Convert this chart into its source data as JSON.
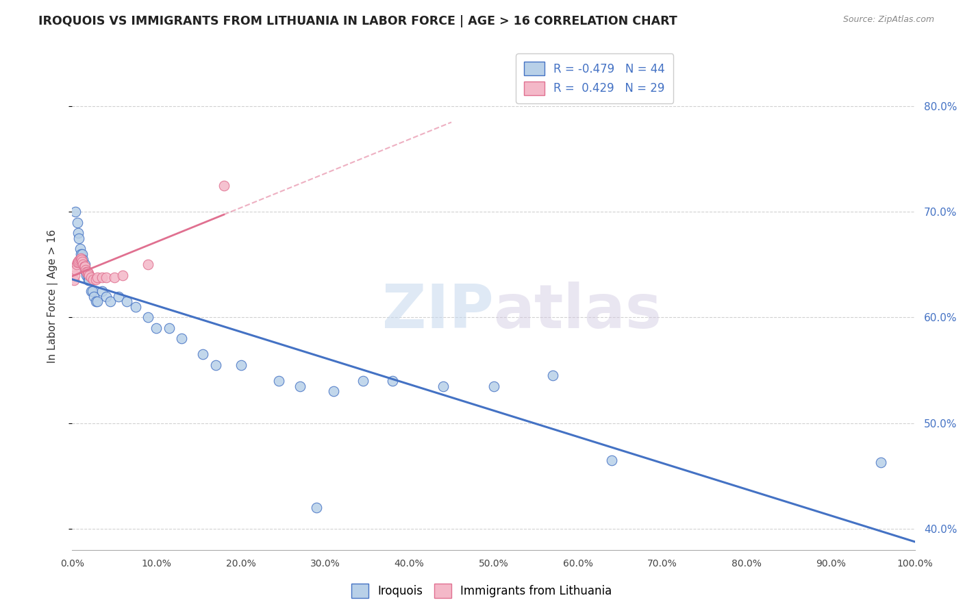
{
  "title": "IROQUOIS VS IMMIGRANTS FROM LITHUANIA IN LABOR FORCE | AGE > 16 CORRELATION CHART",
  "source": "Source: ZipAtlas.com",
  "ylabel": "In Labor Force | Age > 16",
  "watermark": "ZIPatlas",
  "legend_r1": "-0.479",
  "legend_n1": "44",
  "legend_r2": "0.429",
  "legend_n2": "29",
  "iroquois_color": "#b8d0e8",
  "lithuania_color": "#f4b8c8",
  "iroquois_line_color": "#4472c4",
  "lithuania_line_color": "#e07090",
  "right_axis_color": "#4472c4",
  "background": "#ffffff",
  "xlim": [
    0.0,
    1.0
  ],
  "ylim": [
    0.38,
    0.86
  ],
  "yticks": [
    0.4,
    0.5,
    0.6,
    0.7,
    0.8
  ],
  "xticks": [
    0.0,
    0.1,
    0.2,
    0.3,
    0.4,
    0.5,
    0.6,
    0.7,
    0.8,
    0.9,
    1.0
  ],
  "iroquois_x": [
    0.004,
    0.006,
    0.007,
    0.008,
    0.009,
    0.01,
    0.012,
    0.013,
    0.014,
    0.015,
    0.016,
    0.017,
    0.018,
    0.019,
    0.02,
    0.022,
    0.024,
    0.026,
    0.028,
    0.03,
    0.035,
    0.04,
    0.045,
    0.055,
    0.065,
    0.075,
    0.09,
    0.1,
    0.115,
    0.13,
    0.155,
    0.17,
    0.2,
    0.245,
    0.27,
    0.31,
    0.345,
    0.38,
    0.44,
    0.5,
    0.57,
    0.64,
    0.96,
    0.29
  ],
  "iroquois_y": [
    0.7,
    0.69,
    0.68,
    0.675,
    0.665,
    0.66,
    0.66,
    0.655,
    0.645,
    0.65,
    0.645,
    0.64,
    0.64,
    0.635,
    0.635,
    0.625,
    0.625,
    0.62,
    0.615,
    0.615,
    0.625,
    0.62,
    0.615,
    0.62,
    0.615,
    0.61,
    0.6,
    0.59,
    0.59,
    0.58,
    0.565,
    0.555,
    0.555,
    0.54,
    0.535,
    0.53,
    0.54,
    0.54,
    0.535,
    0.535,
    0.545,
    0.465,
    0.463,
    0.42
  ],
  "lithuania_x": [
    0.002,
    0.003,
    0.004,
    0.005,
    0.006,
    0.007,
    0.008,
    0.009,
    0.01,
    0.011,
    0.012,
    0.013,
    0.014,
    0.015,
    0.016,
    0.017,
    0.018,
    0.019,
    0.02,
    0.022,
    0.025,
    0.028,
    0.03,
    0.035,
    0.04,
    0.05,
    0.06,
    0.09,
    0.18
  ],
  "lithuania_y": [
    0.635,
    0.64,
    0.645,
    0.65,
    0.652,
    0.653,
    0.654,
    0.655,
    0.656,
    0.655,
    0.653,
    0.65,
    0.648,
    0.648,
    0.645,
    0.643,
    0.643,
    0.642,
    0.64,
    0.638,
    0.636,
    0.636,
    0.638,
    0.638,
    0.638,
    0.638,
    0.64,
    0.65,
    0.725
  ]
}
